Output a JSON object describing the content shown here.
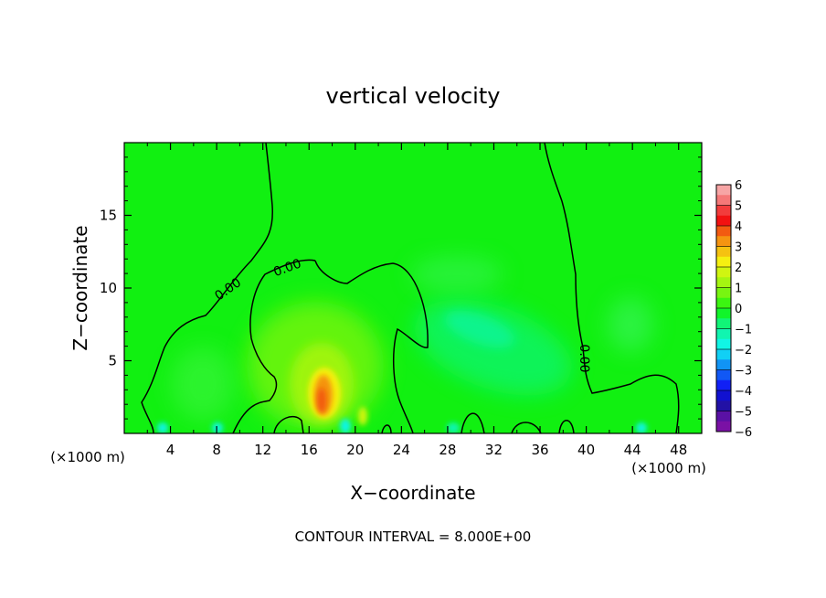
{
  "chart_data": {
    "type": "heatmap",
    "title": "vertical velocity",
    "xlabel": "X−coordinate",
    "ylabel": "Z−coordinate",
    "x_unit_left": "(×1000 m)",
    "x_unit_right": "(×1000 m)",
    "footer": "CONTOUR INTERVAL = 8.000E+00",
    "xlim": [
      0,
      50
    ],
    "ylim": [
      0,
      20
    ],
    "x_ticks": [
      4,
      8,
      12,
      16,
      20,
      24,
      28,
      32,
      36,
      40,
      44,
      48
    ],
    "y_ticks": [
      5,
      10,
      15
    ],
    "contour_labels": [
      "0.00",
      "0.00",
      "0.00"
    ],
    "colorbar": {
      "range": [
        -6,
        6
      ],
      "tick_labels": [
        "6",
        "5",
        "4",
        "3",
        "2",
        "1",
        "0",
        "−1",
        "−2",
        "−3",
        "−4",
        "−5",
        "−6"
      ],
      "colors": [
        "#f7a5a5",
        "#f57878",
        "#f23c3c",
        "#f21111",
        "#f25a11",
        "#f59411",
        "#f5c211",
        "#f5f011",
        "#d0f511",
        "#a5f511",
        "#78f511",
        "#3cf511",
        "#11f52a",
        "#11f577",
        "#11f5b0",
        "#11f5e5",
        "#11d0f5",
        "#1194f5",
        "#1158f5",
        "#1120f5",
        "#1111d0",
        "#2211a5",
        "#5a11a5",
        "#7a11a5"
      ]
    }
  }
}
